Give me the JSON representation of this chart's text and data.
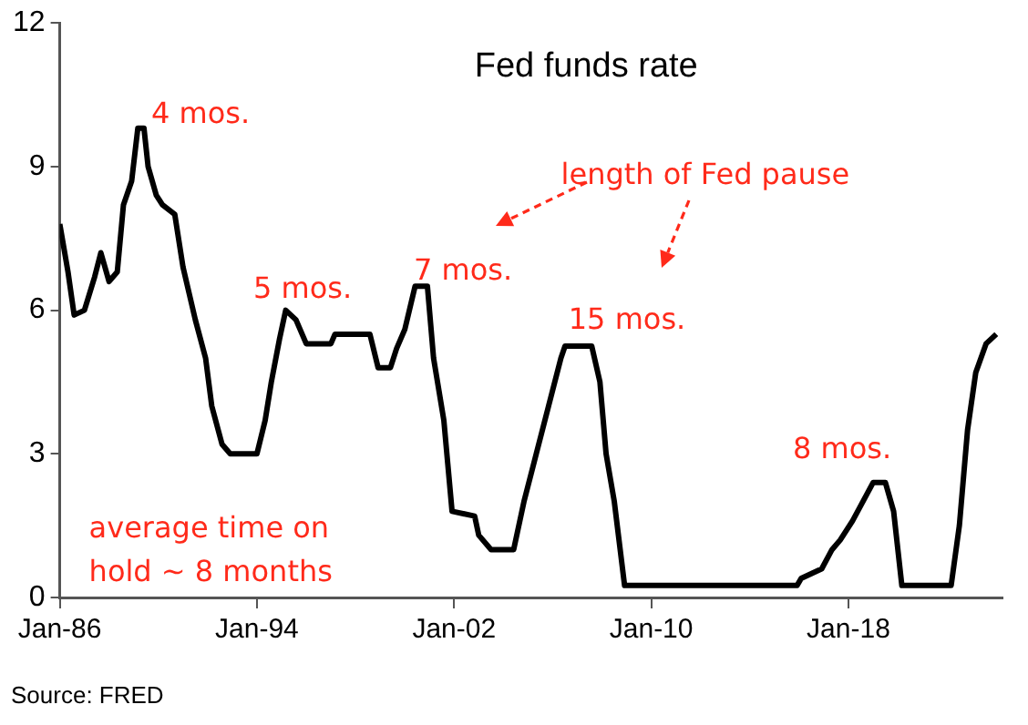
{
  "chart_data": {
    "type": "line",
    "title": "Fed funds rate",
    "x": [
      "1986-01",
      "1986-05",
      "1986-08",
      "1987-01",
      "1987-06",
      "1987-09",
      "1988-01",
      "1988-05",
      "1988-08",
      "1988-12",
      "1989-03",
      "1989-06",
      "1989-08",
      "1989-12",
      "1990-03",
      "1990-09",
      "1991-01",
      "1991-07",
      "1991-12",
      "1992-03",
      "1992-08",
      "1992-12",
      "1993-07",
      "1994-01",
      "1994-05",
      "1994-08",
      "1994-12",
      "1995-03",
      "1995-08",
      "1996-01",
      "1997-01",
      "1997-03",
      "1998-08",
      "1998-12",
      "1999-06",
      "1999-09",
      "2000-01",
      "2000-06",
      "2000-12",
      "2001-03",
      "2001-08",
      "2001-12",
      "2002-11",
      "2003-01",
      "2003-07",
      "2004-06",
      "2004-11",
      "2005-05",
      "2005-11",
      "2006-05",
      "2006-07",
      "2007-08",
      "2007-12",
      "2008-03",
      "2008-07",
      "2008-12",
      "2015-12",
      "2016-02",
      "2016-12",
      "2017-05",
      "2017-09",
      "2018-03",
      "2018-08",
      "2019-01",
      "2019-07",
      "2019-11",
      "2020-03",
      "2022-03",
      "2022-07",
      "2022-11",
      "2023-03",
      "2023-08",
      "2024-01"
    ],
    "series": [
      {
        "color": "#000000",
        "values": [
          7.8,
          6.8,
          5.9,
          6.0,
          6.7,
          7.2,
          6.6,
          6.8,
          8.2,
          8.7,
          9.8,
          9.8,
          9.0,
          8.4,
          8.2,
          8.0,
          6.9,
          5.8,
          5.0,
          4.0,
          3.2,
          3.0,
          3.0,
          3.0,
          3.7,
          4.5,
          5.4,
          6.0,
          5.8,
          5.3,
          5.3,
          5.5,
          5.5,
          4.8,
          4.8,
          5.2,
          5.6,
          6.5,
          6.5,
          5.0,
          3.7,
          1.8,
          1.7,
          1.3,
          1.0,
          1.0,
          2.0,
          3.0,
          4.0,
          5.0,
          5.25,
          5.25,
          4.5,
          3.0,
          2.0,
          0.25,
          0.25,
          0.4,
          0.6,
          1.0,
          1.2,
          1.6,
          2.0,
          2.4,
          2.4,
          1.8,
          0.25,
          0.25,
          1.5,
          3.5,
          4.7,
          5.3,
          5.5
        ]
      }
    ],
    "xlim": [
      "1986-01",
      "2024-04"
    ],
    "xticks": [
      {
        "value": "1986-01",
        "label": "Jan-86"
      },
      {
        "value": "1994-01",
        "label": "Jan-94"
      },
      {
        "value": "2002-01",
        "label": "Jan-02"
      },
      {
        "value": "2010-01",
        "label": "Jan-10"
      },
      {
        "value": "2018-01",
        "label": "Jan-18"
      }
    ],
    "ylim": [
      0,
      12
    ],
    "yticks": [
      0,
      3,
      6,
      9,
      12
    ],
    "grid": false,
    "legend": false,
    "marker": "none",
    "line_style": "solid",
    "annotations": [
      "4 mos.",
      "5 mos.",
      "7 mos.",
      "15 mos.",
      "8 mos.",
      "length of Fed pause",
      "average time on hold  ~ 8 months",
      "Source: FRED"
    ]
  }
}
